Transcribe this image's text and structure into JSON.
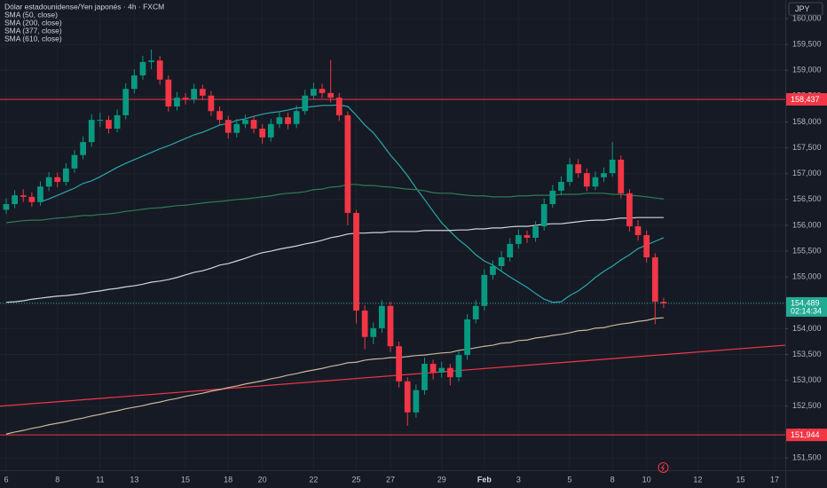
{
  "chart_data": {
    "type": "candlestick",
    "title": "Dólar estadounidense/Yen japonés · 4h · FXCM",
    "currency": "JPY",
    "categories": [
      "6",
      null,
      null,
      null,
      null,
      null,
      "8",
      null,
      null,
      null,
      null,
      "11",
      null,
      null,
      null,
      "13",
      null,
      null,
      null,
      null,
      null,
      "15",
      null,
      null,
      null,
      null,
      "18",
      null,
      null,
      null,
      "20",
      null,
      null,
      null,
      null,
      null,
      "22",
      null,
      null,
      null,
      null,
      "25",
      null,
      null,
      null,
      "27",
      null,
      null,
      null,
      null,
      null,
      "29",
      null,
      null,
      null,
      null,
      "Feb",
      null,
      null,
      null,
      "3",
      null,
      null,
      null,
      null,
      null,
      "5",
      null,
      null,
      null,
      null,
      "8",
      null,
      null,
      null,
      "10",
      null,
      null,
      null,
      null,
      null,
      "12",
      null,
      null,
      null,
      null,
      "15",
      null,
      null,
      null,
      "17"
    ],
    "open": [
      156.3,
      156.41,
      156.58,
      156.55,
      156.45,
      156.75,
      156.93,
      156.84,
      157.1,
      157.36,
      157.61,
      158.04,
      158.04,
      157.87,
      158.13,
      158.64,
      158.9,
      159.16,
      159.19,
      158.82,
      158.3,
      158.47,
      158.44,
      158.64,
      158.51,
      158.21,
      158.04,
      157.79,
      157.96,
      158.04,
      157.87,
      157.7,
      157.96,
      158.09,
      157.96,
      158.21,
      158.51,
      158.64,
      158.56,
      158.47,
      158.13,
      156.24,
      154.35,
      153.84,
      154.01,
      154.44,
      153.66,
      152.98,
      152.38,
      152.81,
      153.32,
      153.15,
      153.24,
      153.06,
      153.49,
      154.18,
      154.44,
      155.04,
      155.21,
      155.38,
      155.64,
      155.81,
      155.76,
      155.98,
      156.41,
      156.67,
      156.84,
      157.18,
      157.01,
      156.75,
      156.93,
      157.01,
      157.27,
      156.62,
      155.98,
      155.81,
      155.38,
      154.52,
      null,
      null,
      null,
      null,
      null,
      null,
      null,
      null,
      null,
      null,
      null,
      null,
      null
    ],
    "high": [
      156.52,
      156.68,
      156.7,
      156.64,
      156.85,
      157.03,
      157.02,
      157.2,
      157.46,
      157.72,
      158.15,
      158.18,
      158.12,
      158.24,
      158.75,
      159.02,
      159.28,
      159.4,
      159.28,
      158.9,
      158.58,
      158.56,
      158.74,
      158.72,
      158.6,
      158.3,
      158.12,
      158.06,
      158.14,
      158.12,
      157.96,
      158.06,
      158.2,
      158.18,
      158.32,
      158.62,
      158.76,
      158.74,
      159.2,
      158.56,
      158.2,
      156.3,
      154.45,
      154.12,
      154.55,
      154.52,
      153.75,
      153.06,
      152.92,
      153.44,
      153.4,
      153.36,
      153.32,
      153.6,
      154.28,
      154.55,
      155.15,
      155.32,
      155.5,
      155.75,
      155.92,
      155.9,
      156.08,
      156.52,
      156.78,
      156.95,
      157.3,
      157.28,
      157.1,
      157.04,
      157.12,
      157.61,
      157.35,
      156.7,
      156.1,
      155.9,
      155.46,
      154.6,
      null,
      null,
      null,
      null,
      null,
      null,
      null,
      null,
      null,
      null,
      null,
      null,
      null
    ],
    "low": [
      156.22,
      156.33,
      156.45,
      156.36,
      156.38,
      156.66,
      156.74,
      156.77,
      157.02,
      157.28,
      157.52,
      157.9,
      157.78,
      157.8,
      158.05,
      158.55,
      158.82,
      159.02,
      158.72,
      158.2,
      158.22,
      158.34,
      158.36,
      158.42,
      158.12,
      157.95,
      157.68,
      157.7,
      157.88,
      157.78,
      157.58,
      157.62,
      157.88,
      157.86,
      157.88,
      158.14,
      158.44,
      158.46,
      158.38,
      158.02,
      156.0,
      154.1,
      153.6,
      153.7,
      153.92,
      153.55,
      152.86,
      152.12,
      152.28,
      152.72,
      153.02,
      153.05,
      152.9,
      152.98,
      153.4,
      154.1,
      154.35,
      154.95,
      155.12,
      155.3,
      155.55,
      155.66,
      155.68,
      155.9,
      156.34,
      156.58,
      156.76,
      156.92,
      156.66,
      156.68,
      156.84,
      156.94,
      156.52,
      155.88,
      155.7,
      155.28,
      154.09,
      154.4,
      null,
      null,
      null,
      null,
      null,
      null,
      null,
      null,
      null,
      null,
      null,
      null,
      null
    ],
    "close": [
      156.41,
      156.58,
      156.55,
      156.45,
      156.75,
      156.93,
      156.84,
      157.1,
      157.36,
      157.61,
      158.04,
      158.04,
      157.87,
      158.13,
      158.64,
      158.9,
      159.16,
      159.19,
      158.82,
      158.3,
      158.47,
      158.44,
      158.64,
      158.51,
      158.21,
      158.04,
      157.79,
      157.96,
      158.04,
      157.87,
      157.7,
      157.96,
      158.09,
      157.96,
      158.21,
      158.51,
      158.64,
      158.56,
      158.47,
      158.13,
      156.24,
      154.35,
      153.84,
      154.01,
      154.44,
      153.66,
      152.98,
      152.38,
      152.81,
      153.32,
      153.15,
      153.24,
      153.06,
      153.49,
      154.18,
      154.44,
      155.04,
      155.21,
      155.38,
      155.64,
      155.81,
      155.76,
      155.98,
      156.41,
      156.67,
      156.84,
      157.18,
      157.01,
      156.75,
      156.93,
      157.01,
      157.27,
      156.62,
      155.98,
      155.81,
      155.38,
      154.52,
      154.49,
      null,
      null,
      null,
      null,
      null,
      null,
      null,
      null,
      null,
      null,
      null,
      null,
      null
    ],
    "up_color": "#089981",
    "down_color": "#f23645",
    "series": [
      {
        "name": "SMA (50, close)",
        "color": "#2aa8a8",
        "values": [
          null,
          null,
          null,
          null,
          156.45,
          156.51,
          156.58,
          156.65,
          156.72,
          156.81,
          156.86,
          156.94,
          157.03,
          157.12,
          157.2,
          157.27,
          157.34,
          157.41,
          157.48,
          157.54,
          157.61,
          157.68,
          157.75,
          157.8,
          157.87,
          157.94,
          157.97,
          158.03,
          158.06,
          158.11,
          158.15,
          158.18,
          158.2,
          158.23,
          158.27,
          158.28,
          158.3,
          158.32,
          158.32,
          158.33,
          158.3,
          158.13,
          157.94,
          157.79,
          157.58,
          157.36,
          157.17,
          156.96,
          156.72,
          156.5,
          156.27,
          156.05,
          155.88,
          155.72,
          155.59,
          155.43,
          155.31,
          155.23,
          155.11,
          155.0,
          154.9,
          154.8,
          154.68,
          154.57,
          154.51,
          154.52,
          154.64,
          154.73,
          154.85,
          154.99,
          155.11,
          155.21,
          155.33,
          155.43,
          155.55,
          155.62,
          155.69,
          155.76,
          null,
          null,
          null,
          null,
          null,
          null,
          null,
          null,
          null,
          null,
          null,
          null,
          null
        ]
      },
      {
        "name": "SMA (200, close)",
        "color": "#2e7d4f",
        "values": [
          156.05,
          156.07,
          156.09,
          156.1,
          156.1,
          156.12,
          156.14,
          156.15,
          156.17,
          156.19,
          156.19,
          156.21,
          156.22,
          156.24,
          156.27,
          156.29,
          156.31,
          156.33,
          156.34,
          156.36,
          156.38,
          156.39,
          156.41,
          156.43,
          156.45,
          156.46,
          156.48,
          156.5,
          156.51,
          156.53,
          156.55,
          156.57,
          156.6,
          156.62,
          156.63,
          156.65,
          156.69,
          156.7,
          156.74,
          156.75,
          156.79,
          156.79,
          156.77,
          156.77,
          156.75,
          156.74,
          156.72,
          156.7,
          156.69,
          156.67,
          156.63,
          156.62,
          156.62,
          156.6,
          156.58,
          156.57,
          156.57,
          156.55,
          156.55,
          156.55,
          156.57,
          156.57,
          156.58,
          156.58,
          156.58,
          156.6,
          156.6,
          156.6,
          156.62,
          156.62,
          156.62,
          156.6,
          156.6,
          156.58,
          156.57,
          156.55,
          156.53,
          156.51,
          null,
          null,
          null,
          null,
          null,
          null,
          null,
          null,
          null,
          null,
          null,
          null,
          null
        ]
      },
      {
        "name": "SMA (377, close)",
        "color": "#d1d4dc",
        "values": [
          154.51,
          154.52,
          154.54,
          154.57,
          154.59,
          154.61,
          154.63,
          154.64,
          154.66,
          154.68,
          154.71,
          154.73,
          154.76,
          154.78,
          154.81,
          154.83,
          154.86,
          154.9,
          154.92,
          154.95,
          154.99,
          155.04,
          155.09,
          155.12,
          155.17,
          155.23,
          155.26,
          155.31,
          155.36,
          155.42,
          155.47,
          155.5,
          155.54,
          155.57,
          155.6,
          155.64,
          155.67,
          155.71,
          155.76,
          155.79,
          155.83,
          155.85,
          155.85,
          155.86,
          155.86,
          155.88,
          155.88,
          155.88,
          155.88,
          155.9,
          155.9,
          155.9,
          155.9,
          155.91,
          155.91,
          155.93,
          155.93,
          155.95,
          155.95,
          155.97,
          155.98,
          155.98,
          156.0,
          156.02,
          156.03,
          156.03,
          156.05,
          156.07,
          156.09,
          156.1,
          156.1,
          156.12,
          156.14,
          156.14,
          156.15,
          156.15,
          156.15,
          156.15,
          null,
          null,
          null,
          null,
          null,
          null,
          null,
          null,
          null,
          null,
          null,
          null,
          null
        ]
      },
      {
        "name": "SMA (610, close)",
        "color": "#c9b79c",
        "values": [
          151.96,
          152.0,
          152.03,
          152.07,
          152.1,
          152.14,
          152.17,
          152.2,
          152.24,
          152.27,
          152.31,
          152.34,
          152.38,
          152.41,
          152.45,
          152.48,
          152.51,
          152.55,
          152.58,
          152.62,
          152.65,
          152.69,
          152.72,
          152.75,
          152.79,
          152.82,
          152.86,
          152.89,
          152.93,
          152.96,
          152.99,
          153.03,
          153.06,
          153.1,
          153.13,
          153.17,
          153.2,
          153.23,
          153.27,
          153.3,
          153.34,
          153.35,
          153.39,
          153.41,
          153.42,
          153.44,
          153.44,
          153.46,
          153.48,
          153.49,
          153.51,
          153.53,
          153.54,
          153.58,
          153.6,
          153.63,
          153.66,
          153.68,
          153.72,
          153.73,
          153.77,
          153.78,
          153.82,
          153.84,
          153.87,
          153.89,
          153.92,
          153.96,
          153.97,
          154.01,
          154.02,
          154.06,
          154.09,
          154.11,
          154.14,
          154.16,
          154.2,
          154.21,
          null,
          null,
          null,
          null,
          null,
          null,
          null,
          null,
          null,
          null,
          null,
          null,
          null
        ]
      }
    ],
    "levels": [
      {
        "value": 158.437,
        "label": "158,437",
        "color": "#f23645"
      },
      {
        "value": 151.944,
        "label": "151,944",
        "color": "#f23645"
      }
    ],
    "trendline": {
      "start": 152.5,
      "end": 153.68,
      "color": "#f23645"
    },
    "last_price": {
      "value": 154.489,
      "label": "154,489",
      "countdown": "02:14:34",
      "color": "#22ab94"
    },
    "ylim": [
      151.26,
      160.36
    ],
    "yticks": [
      {
        "value": 151.5,
        "label": "151,500"
      },
      {
        "value": 152,
        "label": "152,000"
      },
      {
        "value": 152.5,
        "label": "152,500"
      },
      {
        "value": 153,
        "label": "153,000"
      },
      {
        "value": 153.5,
        "label": "153,500"
      },
      {
        "value": 154,
        "label": "154,000"
      },
      {
        "value": 154.5,
        "label": "154,500"
      },
      {
        "value": 155,
        "label": "155,000"
      },
      {
        "value": 155.5,
        "label": "155,500"
      },
      {
        "value": 156,
        "label": "156,000"
      },
      {
        "value": 156.5,
        "label": "156,500"
      },
      {
        "value": 157,
        "label": "157,000"
      },
      {
        "value": 157.5,
        "label": "157,500"
      },
      {
        "value": 158,
        "label": "158,000"
      },
      {
        "value": 158.5,
        "label": "158,500"
      },
      {
        "value": 159,
        "label": "159,000"
      },
      {
        "value": 159.5,
        "label": "159,500"
      },
      {
        "value": 160,
        "label": "160,000"
      }
    ],
    "grid": true
  }
}
